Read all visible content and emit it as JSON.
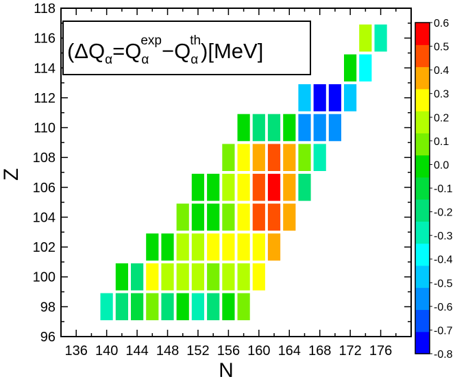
{
  "chart_data": {
    "type": "heatmap",
    "title": "",
    "xlabel": "N",
    "ylabel": "Z",
    "xlim": [
      134,
      180
    ],
    "ylim": [
      96,
      118
    ],
    "xticks": [
      136,
      140,
      144,
      148,
      152,
      156,
      160,
      164,
      168,
      172,
      176
    ],
    "yticks": [
      96,
      98,
      100,
      102,
      104,
      106,
      108,
      110,
      112,
      114,
      116,
      118
    ],
    "annotation": {
      "open": "(",
      "delta": "ΔQ",
      "alpha": "α",
      "eq": "=Q",
      "exp": "exp",
      "minus": "−Q",
      "th": "th",
      "close": ")[MeV]"
    },
    "colorbar": {
      "min": -0.8,
      "max": 0.6,
      "tick_labels": [
        "0.6",
        "0.5",
        "0.4",
        "0.3",
        "0.2",
        "0.1",
        "0.0",
        "-0.1",
        "-0.2",
        "-0.3",
        "-0.4",
        "-0.5",
        "-0.6",
        "-0.7",
        "-0.8"
      ],
      "colors": [
        "#0000ff",
        "#0050ff",
        "#0090ff",
        "#00c8ff",
        "#00ffff",
        "#00f0b4",
        "#00e078",
        "#00dc3c",
        "#00dc00",
        "#78f000",
        "#b4ff00",
        "#ffff00",
        "#ffaa00",
        "#ff5000",
        "#ff0000"
      ]
    },
    "points": [
      {
        "N": 140,
        "Z": 98,
        "v": -0.25
      },
      {
        "N": 142,
        "Z": 98,
        "v": -0.15
      },
      {
        "N": 144,
        "Z": 98,
        "v": -0.1
      },
      {
        "N": 146,
        "Z": 98,
        "v": 0.1
      },
      {
        "N": 148,
        "Z": 98,
        "v": -0.15
      },
      {
        "N": 150,
        "Z": 98,
        "v": -0.05
      },
      {
        "N": 152,
        "Z": 98,
        "v": -0.25
      },
      {
        "N": 154,
        "Z": 98,
        "v": -0.15
      },
      {
        "N": 156,
        "Z": 98,
        "v": -0.05
      },
      {
        "N": 158,
        "Z": 98,
        "v": 0.05
      },
      {
        "N": 142,
        "Z": 100,
        "v": -0.05
      },
      {
        "N": 144,
        "Z": 100,
        "v": -0.15
      },
      {
        "N": 146,
        "Z": 100,
        "v": 0.25
      },
      {
        "N": 148,
        "Z": 100,
        "v": 0.15
      },
      {
        "N": 150,
        "Z": 100,
        "v": 0.15
      },
      {
        "N": 152,
        "Z": 100,
        "v": 0.15
      },
      {
        "N": 154,
        "Z": 100,
        "v": 0.05
      },
      {
        "N": 156,
        "Z": 100,
        "v": 0.15
      },
      {
        "N": 158,
        "Z": 100,
        "v": 0.15
      },
      {
        "N": 160,
        "Z": 100,
        "v": 0.25
      },
      {
        "N": 146,
        "Z": 102,
        "v": -0.05
      },
      {
        "N": 148,
        "Z": 102,
        "v": -0.05
      },
      {
        "N": 150,
        "Z": 102,
        "v": 0.15
      },
      {
        "N": 152,
        "Z": 102,
        "v": 0.15
      },
      {
        "N": 154,
        "Z": 102,
        "v": 0.25
      },
      {
        "N": 156,
        "Z": 102,
        "v": 0.25
      },
      {
        "N": 158,
        "Z": 102,
        "v": 0.25
      },
      {
        "N": 160,
        "Z": 102,
        "v": 0.25
      },
      {
        "N": 162,
        "Z": 102,
        "v": 0.35
      },
      {
        "N": 150,
        "Z": 104,
        "v": 0.05
      },
      {
        "N": 152,
        "Z": 104,
        "v": -0.05
      },
      {
        "N": 154,
        "Z": 104,
        "v": -0.05
      },
      {
        "N": 156,
        "Z": 104,
        "v": 0.05
      },
      {
        "N": 158,
        "Z": 104,
        "v": 0.25
      },
      {
        "N": 160,
        "Z": 104,
        "v": 0.45
      },
      {
        "N": 162,
        "Z": 104,
        "v": 0.45
      },
      {
        "N": 164,
        "Z": 104,
        "v": 0.35
      },
      {
        "N": 152,
        "Z": 106,
        "v": -0.05
      },
      {
        "N": 154,
        "Z": 106,
        "v": -0.05
      },
      {
        "N": 156,
        "Z": 106,
        "v": 0.15
      },
      {
        "N": 158,
        "Z": 106,
        "v": 0.25
      },
      {
        "N": 160,
        "Z": 106,
        "v": 0.45
      },
      {
        "N": 162,
        "Z": 106,
        "v": 0.55
      },
      {
        "N": 164,
        "Z": 106,
        "v": 0.35
      },
      {
        "N": 166,
        "Z": 106,
        "v": -0.15
      },
      {
        "N": 156,
        "Z": 108,
        "v": 0.05
      },
      {
        "N": 158,
        "Z": 108,
        "v": 0.25
      },
      {
        "N": 160,
        "Z": 108,
        "v": 0.35
      },
      {
        "N": 162,
        "Z": 108,
        "v": 0.45
      },
      {
        "N": 164,
        "Z": 108,
        "v": 0.35
      },
      {
        "N": 166,
        "Z": 108,
        "v": 0.05
      },
      {
        "N": 168,
        "Z": 108,
        "v": -0.25
      },
      {
        "N": 158,
        "Z": 110,
        "v": -0.05
      },
      {
        "N": 160,
        "Z": 110,
        "v": -0.15
      },
      {
        "N": 162,
        "Z": 110,
        "v": -0.15
      },
      {
        "N": 164,
        "Z": 110,
        "v": -0.05
      },
      {
        "N": 166,
        "Z": 110,
        "v": -0.55
      },
      {
        "N": 168,
        "Z": 110,
        "v": -0.55
      },
      {
        "N": 170,
        "Z": 110,
        "v": -0.55
      },
      {
        "N": 166,
        "Z": 112,
        "v": -0.45
      },
      {
        "N": 168,
        "Z": 112,
        "v": -0.75
      },
      {
        "N": 170,
        "Z": 112,
        "v": -0.75
      },
      {
        "N": 172,
        "Z": 112,
        "v": -0.45
      },
      {
        "N": 172,
        "Z": 114,
        "v": -0.05
      },
      {
        "N": 174,
        "Z": 114,
        "v": -0.35
      },
      {
        "N": 174,
        "Z": 116,
        "v": 0.15
      },
      {
        "N": 176,
        "Z": 116,
        "v": -0.25
      }
    ]
  }
}
